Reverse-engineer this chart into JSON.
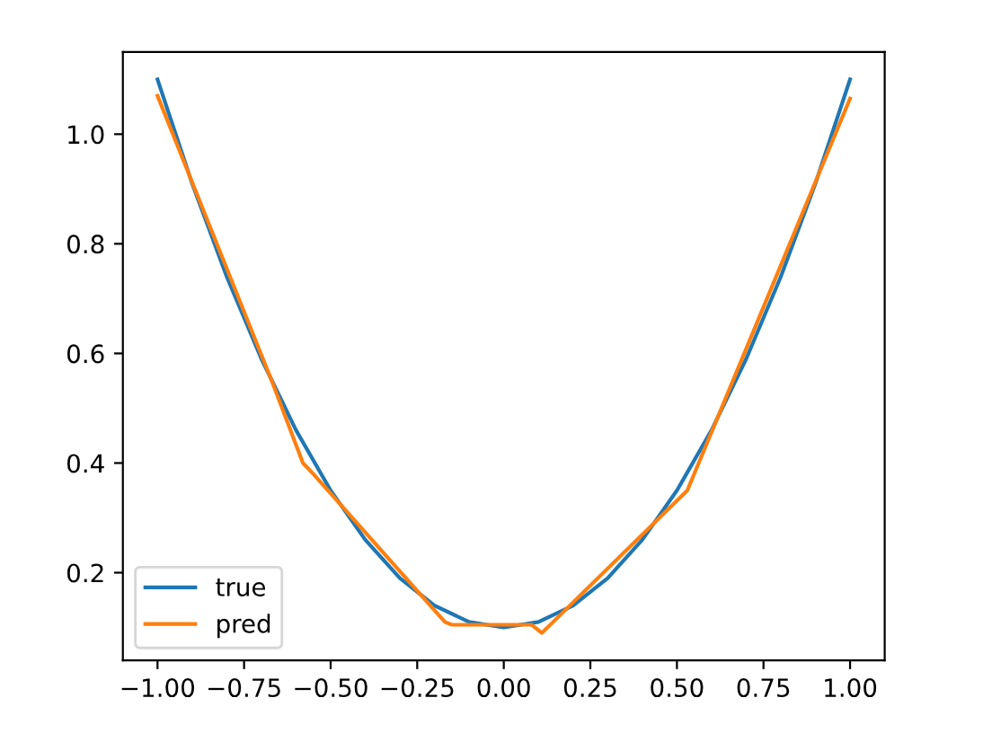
{
  "chart_data": {
    "type": "line",
    "xlim": [
      -1.1,
      1.1
    ],
    "ylim": [
      0.04,
      1.15
    ],
    "xticks": [
      {
        "value": -1.0,
        "label": "−1.00"
      },
      {
        "value": -0.75,
        "label": "−0.75"
      },
      {
        "value": -0.5,
        "label": "−0.50"
      },
      {
        "value": -0.25,
        "label": "−0.25"
      },
      {
        "value": 0,
        "label": "0.00"
      },
      {
        "value": 0.25,
        "label": "0.25"
      },
      {
        "value": 0.5,
        "label": "0.50"
      },
      {
        "value": 0.75,
        "label": "0.75"
      },
      {
        "value": 1.0,
        "label": "1.00"
      }
    ],
    "yticks": [
      {
        "value": 0.2,
        "label": "0.2"
      },
      {
        "value": 0.4,
        "label": "0.4"
      },
      {
        "value": 0.6,
        "label": "0.6"
      },
      {
        "value": 0.8,
        "label": "0.8"
      },
      {
        "value": 1.0,
        "label": "1.0"
      }
    ],
    "legend": "bottom left",
    "grid": false,
    "series": [
      {
        "name": "true",
        "color": "#1f77b4",
        "x": [
          -1.0,
          -0.9,
          -0.8,
          -0.7,
          -0.6,
          -0.5,
          -0.4,
          -0.3,
          -0.2,
          -0.1,
          0.0,
          0.1,
          0.2,
          0.3,
          0.4,
          0.5,
          0.6,
          0.7,
          0.8,
          0.9,
          1.0
        ],
        "values": [
          1.1,
          0.91,
          0.74,
          0.59,
          0.46,
          0.35,
          0.26,
          0.19,
          0.14,
          0.11,
          0.1,
          0.11,
          0.14,
          0.19,
          0.26,
          0.35,
          0.46,
          0.59,
          0.74,
          0.91,
          1.1
        ]
      },
      {
        "name": "pred",
        "color": "#ff7f0e",
        "x": [
          -1.0,
          -0.67,
          -0.58,
          -0.55,
          -0.17,
          -0.15,
          0.08,
          0.11,
          0.53,
          1.0
        ],
        "values": [
          1.07,
          0.55,
          0.4,
          0.38,
          0.11,
          0.105,
          0.105,
          0.09,
          0.35,
          1.065
        ]
      }
    ]
  }
}
